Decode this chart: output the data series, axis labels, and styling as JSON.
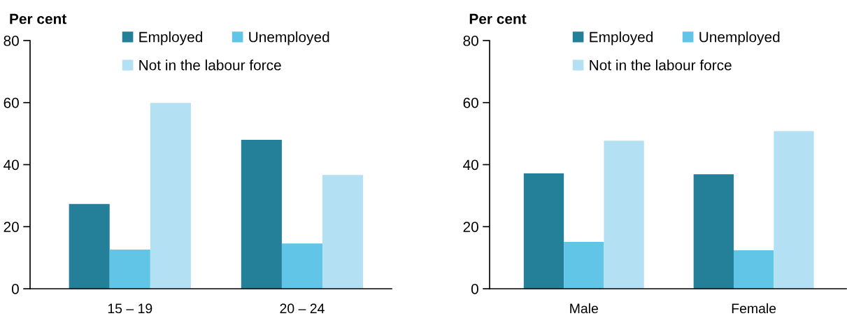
{
  "chart_data": [
    {
      "type": "bar",
      "categories": [
        "15 – 19",
        "20 – 24"
      ],
      "ylabel": "Per cent",
      "ylim": [
        0,
        80
      ],
      "yticks": [
        0,
        20,
        40,
        60,
        80
      ],
      "legend": "top",
      "series": [
        {
          "name": "Employed",
          "color": "#247f98",
          "values": [
            27.3,
            48.0
          ]
        },
        {
          "name": "Unemployed",
          "color": "#61c5e7",
          "values": [
            12.6,
            14.6
          ]
        },
        {
          "name": "Not in the labour force",
          "color": "#b3e1f3",
          "values": [
            59.9,
            36.7
          ]
        }
      ]
    },
    {
      "type": "bar",
      "categories": [
        "Male",
        "Female"
      ],
      "ylabel": "Per cent",
      "ylim": [
        0,
        80
      ],
      "yticks": [
        0,
        20,
        40,
        60,
        80
      ],
      "legend": "top",
      "series": [
        {
          "name": "Employed",
          "color": "#247f98",
          "values": [
            37.2,
            36.9
          ]
        },
        {
          "name": "Unemployed",
          "color": "#61c5e7",
          "values": [
            15.1,
            12.4
          ]
        },
        {
          "name": "Not in the labour force",
          "color": "#b3e1f3",
          "values": [
            47.7,
            50.8
          ]
        }
      ]
    }
  ]
}
